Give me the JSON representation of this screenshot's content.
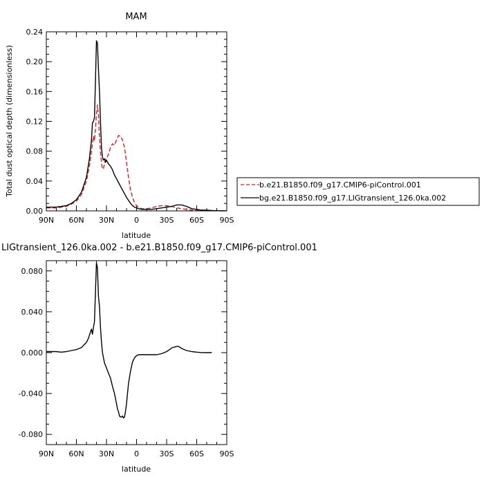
{
  "chart_data": [
    {
      "type": "line",
      "title": "MAM",
      "xlabel": "latitude",
      "ylabel": "Total dust optical depth (dimensionless)",
      "xlim": [
        90,
        -90
      ],
      "ylim": [
        0,
        0.24
      ],
      "xticks": [
        90,
        60,
        30,
        0,
        -30,
        -60,
        -90
      ],
      "xtick_labels": [
        "90N",
        "60N",
        "30N",
        "0",
        "30S",
        "60S",
        "90S"
      ],
      "yticks": [
        0,
        0.04,
        0.08,
        0.12,
        0.16,
        0.2,
        0.24
      ],
      "ytick_labels": [
        "0.00",
        "0.04",
        "0.08",
        "0.12",
        "0.16",
        "0.20",
        "0.24"
      ],
      "grid": false,
      "legend_position": "right",
      "series": [
        {
          "name": "b.e21.B1850.f09_g17.CMIP6-piControl.001",
          "color": "#e41a1c",
          "dash": "dashed",
          "x": [
            90,
            85,
            80,
            75,
            70,
            65,
            60,
            55,
            50,
            47,
            45,
            44,
            43,
            42,
            41,
            40,
            39,
            38,
            37,
            36,
            35,
            34,
            33,
            32,
            31,
            30,
            28,
            26,
            24,
            22,
            20,
            18,
            16,
            14,
            12,
            10,
            8,
            6,
            4,
            2,
            0,
            -2,
            -5,
            -10,
            -15,
            -20,
            -25,
            -30,
            -35,
            -40,
            -45,
            -50,
            -55,
            -60,
            -65,
            -70,
            -75,
            -80,
            -85,
            -90
          ],
          "y": [
            0.004,
            0.004,
            0.004,
            0.005,
            0.006,
            0.009,
            0.013,
            0.022,
            0.04,
            0.06,
            0.08,
            0.09,
            0.1,
            0.094,
            0.11,
            0.13,
            0.142,
            0.128,
            0.1,
            0.08,
            0.064,
            0.056,
            0.057,
            0.063,
            0.069,
            0.07,
            0.076,
            0.085,
            0.09,
            0.088,
            0.095,
            0.101,
            0.1,
            0.095,
            0.085,
            0.065,
            0.045,
            0.028,
            0.018,
            0.011,
            0.007,
            0.005,
            0.003,
            0.003,
            0.004,
            0.006,
            0.007,
            0.007,
            0.006,
            0.004,
            0.003,
            0.002,
            0.001,
            0.001,
            0.001,
            0.0005,
            0.0003,
            0.0002,
            0.0001,
            0.0001
          ]
        },
        {
          "name": "bg.e21.B1850.f09_g17.LIGtransient_126.0ka.002",
          "color": "#000000",
          "dash": "solid",
          "x": [
            90,
            85,
            80,
            75,
            70,
            65,
            60,
            55,
            50,
            47,
            45,
            44,
            43,
            42,
            41,
            40,
            39,
            38,
            37,
            36,
            35,
            34,
            33,
            32,
            31,
            30,
            28,
            26,
            24,
            22,
            20,
            18,
            16,
            14,
            12,
            10,
            8,
            6,
            4,
            2,
            0,
            -2,
            -5,
            -10,
            -15,
            -20,
            -25,
            -30,
            -35,
            -40,
            -45,
            -50,
            -55,
            -60,
            -65,
            -70,
            -75,
            -80,
            -85,
            -90
          ],
          "y": [
            0.005,
            0.005,
            0.005,
            0.006,
            0.007,
            0.01,
            0.015,
            0.025,
            0.045,
            0.07,
            0.095,
            0.118,
            0.12,
            0.125,
            0.175,
            0.228,
            0.225,
            0.19,
            0.16,
            0.12,
            0.085,
            0.072,
            0.068,
            0.07,
            0.065,
            0.068,
            0.063,
            0.06,
            0.055,
            0.048,
            0.043,
            0.038,
            0.033,
            0.028,
            0.023,
            0.018,
            0.014,
            0.01,
            0.007,
            0.005,
            0.004,
            0.003,
            0.002,
            0.002,
            0.002,
            0.003,
            0.004,
            0.005,
            0.006,
            0.008,
            0.008,
            0.006,
            0.003,
            0.002,
            0.001,
            0.001,
            0.0005,
            0.0003,
            0.0002,
            0.0001
          ]
        }
      ]
    },
    {
      "type": "line",
      "title": "LIGtransient_126.0ka.002 - b.e21.B1850.f09_g17.CMIP6-piControl.001",
      "xlabel": "latitude",
      "xlim": [
        90,
        -90
      ],
      "ylim": [
        -0.09,
        0.09
      ],
      "xticks": [
        90,
        60,
        30,
        0,
        -30,
        -60,
        -90
      ],
      "xtick_labels": [
        "90N",
        "60N",
        "30N",
        "0",
        "30S",
        "60S",
        "90S"
      ],
      "yticks": [
        0.08,
        0.04,
        0,
        -0.04,
        -0.08
      ],
      "ytick_labels": [
        "0.080",
        "0.040",
        "0.000",
        "-0.040",
        "-0.080"
      ],
      "grid": false,
      "series": [
        {
          "color": "#000000",
          "dash": "solid",
          "x": [
            90,
            85,
            80,
            75,
            70,
            65,
            60,
            55,
            50,
            48,
            46,
            45,
            44,
            43,
            42,
            41,
            40,
            39,
            38,
            37,
            36,
            35,
            34,
            33,
            32,
            30,
            28,
            26,
            24,
            22,
            20,
            19,
            18,
            17,
            16,
            15,
            14,
            13,
            12,
            11,
            10,
            9,
            8,
            6,
            4,
            2,
            0,
            -2,
            -5,
            -10,
            -15,
            -20,
            -25,
            -30,
            -33,
            -36,
            -40,
            -42,
            -45,
            -50,
            -55,
            -60,
            -65,
            -70,
            -75
          ],
          "y": [
            0.001,
            0.001,
            0.001,
            0.0005,
            0.001,
            0.002,
            0.003,
            0.005,
            0.01,
            0.014,
            0.02,
            0.023,
            0.018,
            0.025,
            0.03,
            0.06,
            0.088,
            0.083,
            0.055,
            0.045,
            0.025,
            0.01,
            0.0,
            -0.005,
            -0.01,
            -0.015,
            -0.02,
            -0.025,
            -0.033,
            -0.04,
            -0.05,
            -0.055,
            -0.058,
            -0.062,
            -0.063,
            -0.063,
            -0.062,
            -0.064,
            -0.063,
            -0.057,
            -0.05,
            -0.04,
            -0.03,
            -0.018,
            -0.009,
            -0.005,
            -0.003,
            -0.002,
            -0.002,
            -0.002,
            -0.002,
            -0.002,
            -0.001,
            0.001,
            0.003,
            0.005,
            0.006,
            0.006,
            0.004,
            0.002,
            0.001,
            0.0005,
            0.0001,
            0.0,
            0.0
          ]
        }
      ]
    }
  ]
}
